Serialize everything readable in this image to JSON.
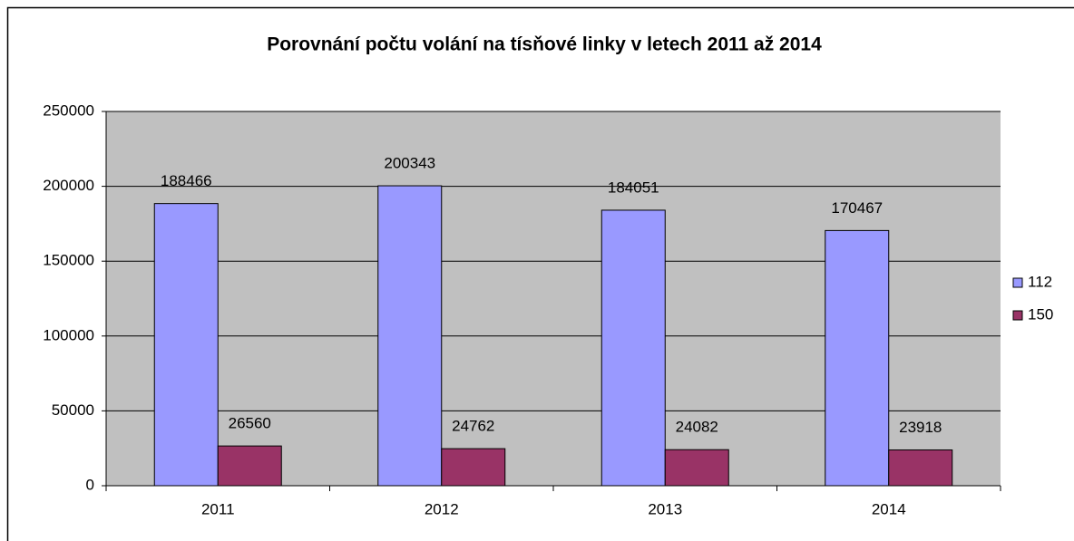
{
  "chart_data": {
    "type": "bar",
    "title": "Porovnání počtu volání na tísňové linky v letech 2011 až 2014",
    "categories": [
      "2011",
      "2012",
      "2013",
      "2014"
    ],
    "series": [
      {
        "name": "112",
        "color": "#9999ff",
        "values": [
          188466,
          200343,
          184051,
          170467
        ]
      },
      {
        "name": "150",
        "color": "#993366",
        "values": [
          26560,
          24762,
          24082,
          23918
        ]
      }
    ],
    "ylim": [
      0,
      250000
    ],
    "yticks": [
      0,
      50000,
      100000,
      150000,
      200000,
      250000
    ],
    "grid": true,
    "legend": "right"
  }
}
